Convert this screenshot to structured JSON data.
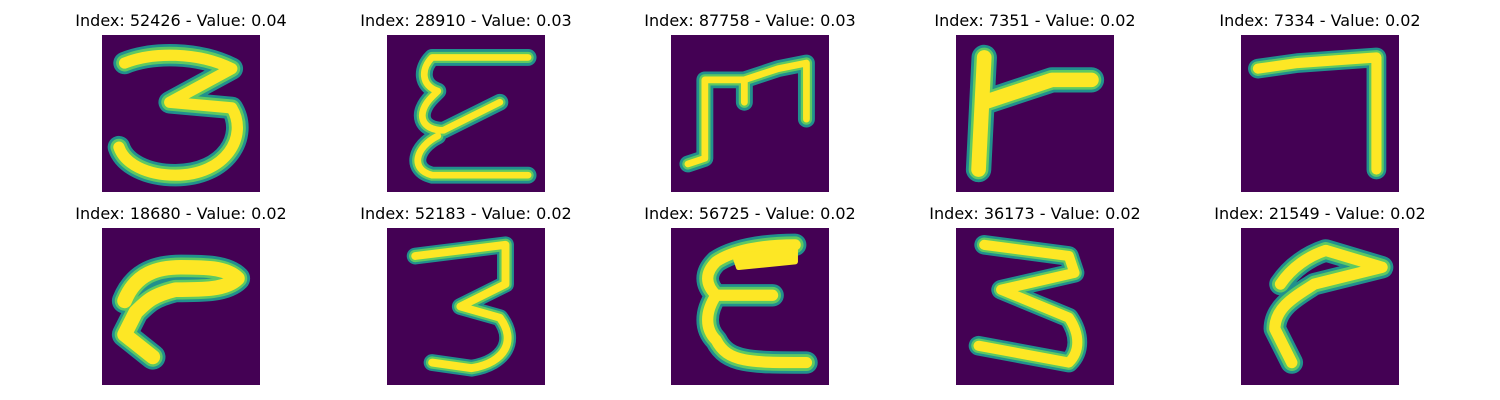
{
  "colors": {
    "background": "#440154",
    "stroke_outer": "#21908d",
    "stroke_mid": "#5ec962",
    "stroke_core": "#fde725"
  },
  "panels": [
    {
      "title": "Index: 52426 - Value: 0.04",
      "glyph": "digit-3"
    },
    {
      "title": "Index: 28910 - Value: 0.03",
      "glyph": "script-e-open"
    },
    {
      "title": "Index: 87758 - Value: 0.03",
      "glyph": "m-shape"
    },
    {
      "title": "Index: 7351 - Value: 0.02",
      "glyph": "r-shape"
    },
    {
      "title": "Index: 7334 - Value: 0.02",
      "glyph": "seven-hook"
    },
    {
      "title": "Index: 18680 - Value: 0.02",
      "glyph": "curved-r"
    },
    {
      "title": "Index: 52183 - Value: 0.02",
      "glyph": "digit-3"
    },
    {
      "title": "Index: 56725 - Value: 0.02",
      "glyph": "letter-e"
    },
    {
      "title": "Index: 36173 - Value: 0.02",
      "glyph": "digit-3-angular"
    },
    {
      "title": "Index: 21549 - Value: 0.02",
      "glyph": "curved-r-lean"
    }
  ]
}
